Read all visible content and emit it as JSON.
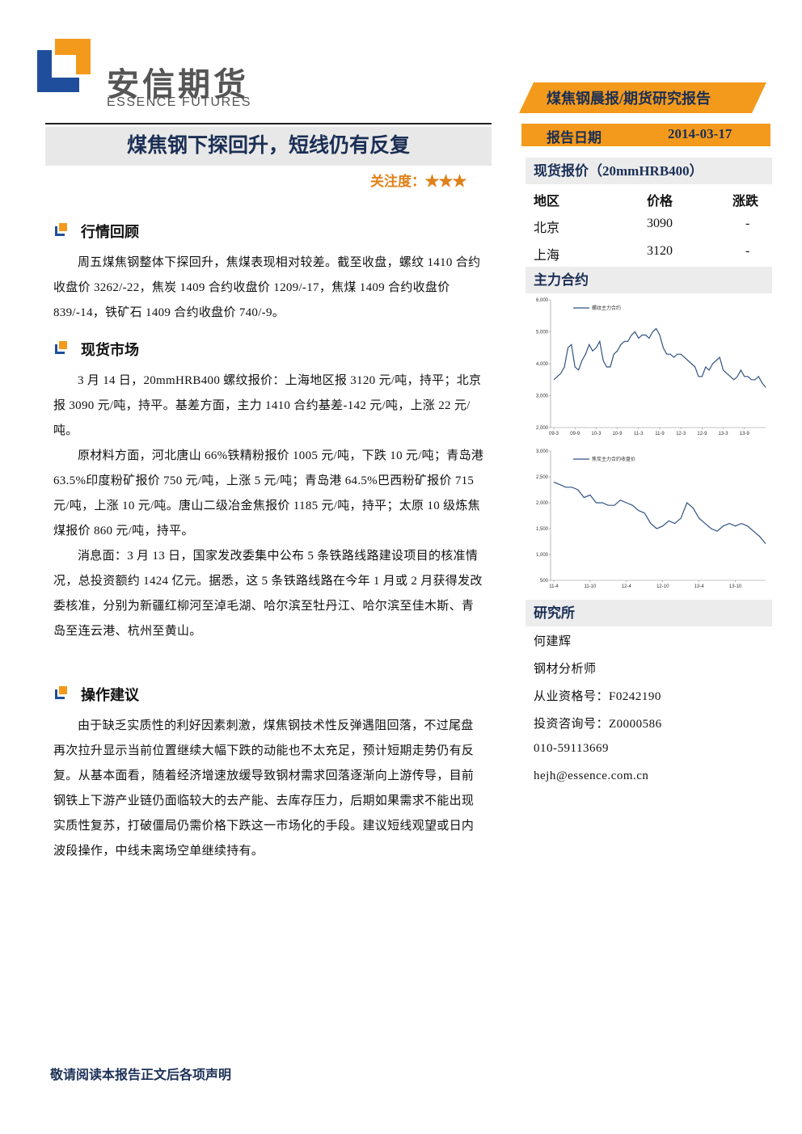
{
  "header": {
    "logo_cn": "安信期货",
    "logo_en": "ESSENCE FUTURES",
    "tag": "煤焦钢晨报/期货研究报告",
    "report_date_label": "报告日期",
    "report_date": "2014-03-17"
  },
  "title": "煤焦钢下探回升，短线仍有反复",
  "attention": {
    "label": "关注度：",
    "stars": "★★★"
  },
  "sections": [
    {
      "heading": "行情回顾",
      "paragraphs": [
        "周五煤焦钢整体下探回升，焦煤表现相对较差。截至收盘，螺纹 1410 合约收盘价 3262/-22，焦炭 1409 合约收盘价 1209/-17，焦煤 1409 合约收盘价 839/-14，铁矿石 1409 合约收盘价 740/-9。"
      ]
    },
    {
      "heading": "现货市场",
      "paragraphs": [
        "3 月 14 日，20mmHRB400 螺纹报价：上海地区报 3120 元/吨，持平；北京报 3090 元/吨，持平。基差方面，主力 1410 合约基差-142 元/吨，上涨 22 元/吨。",
        "原材料方面，河北唐山 66%铁精粉报价 1005 元/吨，下跌 10 元/吨；青岛港 63.5%印度粉矿报价 750 元/吨，上涨 5 元/吨；青岛港 64.5%巴西粉矿报价 715 元/吨，上涨 10 元/吨。唐山二级冶金焦报价 1185 元/吨，持平；太原 10 级炼焦煤报价 860 元/吨，持平。",
        "消息面：3 月 13 日，国家发改委集中公布 5 条铁路线路建设项目的核准情况，总投资额约 1424 亿元。据悉，这 5 条铁路线路在今年 1 月或 2 月获得发改委核准，分别为新疆红柳河至淖毛湖、哈尔滨至牡丹江、哈尔滨至佳木斯、青岛至连云港、杭州至黄山。"
      ]
    },
    {
      "heading": "操作建议",
      "paragraphs": [
        "由于缺乏实质性的利好因素刺激，煤焦钢技术性反弹遇阻回落，不过尾盘再次拉升显示当前位置继续大幅下跌的动能也不太充足，预计短期走势仍有反复。从基本面看，随着经济增速放缓导致钢材需求回落逐渐向上游传导，目前钢铁上下游产业链仍面临较大的去产能、去库存压力，后期如果需求不能出现实质性复苏，打破僵局仍需价格下跌这一市场化的手段。建议短线观望或日内波段操作，中线未离场空单继续持有。"
      ]
    }
  ],
  "spot": {
    "heading": "现货报价（20mmHRB400）",
    "columns": [
      "地区",
      "价格",
      "涨跌"
    ],
    "rows": [
      [
        "北京",
        "3090",
        "-"
      ],
      [
        "上海",
        "3120",
        "-"
      ]
    ]
  },
  "contract_heading": "主力合约",
  "chart_data": [
    {
      "type": "line",
      "categories": [
        "09-3",
        null,
        null,
        null,
        null,
        null,
        "09-9",
        null,
        null,
        null,
        null,
        null,
        "10-3",
        null,
        null,
        null,
        null,
        null,
        "10-9",
        null,
        null,
        null,
        null,
        null,
        "11-3",
        null,
        null,
        null,
        null,
        null,
        "11-9",
        null,
        null,
        null,
        null,
        null,
        "12-3",
        null,
        null,
        null,
        null,
        null,
        "12-9",
        null,
        null,
        null,
        null,
        null,
        "13-3",
        null,
        null,
        null,
        null,
        null,
        "13-9",
        null,
        null,
        null,
        null,
        null,
        null
      ],
      "series": [
        {
          "name": "螺纹主力合约",
          "color": "#2f5283",
          "values": [
            3500,
            3600,
            3700,
            3900,
            4500,
            4600,
            3900,
            3800,
            4100,
            4300,
            4600,
            4400,
            4500,
            4700,
            4100,
            3900,
            3900,
            4300,
            4400,
            4600,
            4700,
            4700,
            4900,
            5000,
            4800,
            4900,
            4900,
            4800,
            5000,
            5100,
            4900,
            4500,
            4300,
            4300,
            4200,
            4300,
            4300,
            4200,
            4100,
            4000,
            3900,
            3600,
            3600,
            3900,
            3800,
            4000,
            4100,
            4200,
            3800,
            3700,
            3600,
            3500,
            3600,
            3800,
            3600,
            3600,
            3500,
            3500,
            3600,
            3400,
            3260
          ]
        }
      ],
      "ylim": [
        2000,
        6000
      ],
      "yticks": [
        {
          "value": 2000,
          "label": "2,000"
        },
        {
          "value": 3000,
          "label": "3,000"
        },
        {
          "value": 4000,
          "label": "4,000"
        },
        {
          "value": 5000,
          "label": "5,000"
        },
        {
          "value": 6000,
          "label": "6,000"
        }
      ]
    },
    {
      "type": "line",
      "categories": [
        "11-4",
        null,
        null,
        null,
        null,
        null,
        "11-10",
        null,
        null,
        null,
        null,
        null,
        "12-4",
        null,
        null,
        null,
        null,
        null,
        "12-10",
        null,
        null,
        null,
        null,
        null,
        "13-4",
        null,
        null,
        null,
        null,
        null,
        "13-10",
        null,
        null,
        null,
        null,
        null
      ],
      "series": [
        {
          "name": "焦炭主力合约收盘价",
          "color": "#2f5283",
          "values": [
            2400,
            2350,
            2300,
            2300,
            2250,
            2100,
            2150,
            2000,
            2000,
            1950,
            1950,
            2050,
            2000,
            1950,
            1850,
            1800,
            1600,
            1500,
            1550,
            1650,
            1600,
            1700,
            2000,
            1900,
            1700,
            1600,
            1500,
            1450,
            1550,
            1600,
            1550,
            1600,
            1550,
            1450,
            1350,
            1209
          ]
        }
      ],
      "ylim": [
        500,
        3000
      ],
      "yticks": [
        500,
        {
          "value": 1000,
          "label": "1,000"
        },
        {
          "value": 1500,
          "label": "1,500"
        },
        {
          "value": 2000,
          "label": "2,000"
        },
        {
          "value": 2500,
          "label": "2,500"
        },
        {
          "value": 3000,
          "label": "3,000"
        }
      ]
    }
  ],
  "institute": {
    "heading": "研究所",
    "lines": [
      "何建辉",
      "钢材分析师",
      "从业资格号：F0242190",
      "投资咨询号：Z0000586",
      "010-59113669",
      "hejh@essence.com.cn"
    ]
  },
  "footer": "敬请阅读本报告正文后各项声明"
}
